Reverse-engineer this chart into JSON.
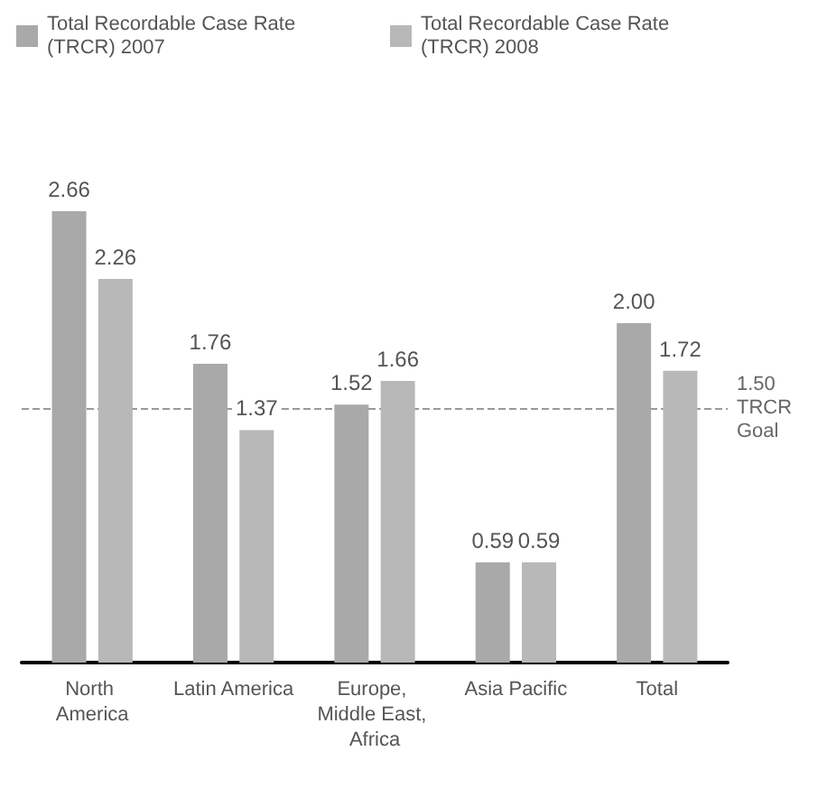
{
  "chart_data": {
    "type": "bar",
    "categories": [
      "North America",
      "Latin America",
      "Europe, Middle East, Africa",
      "Asia Pacific",
      "Total"
    ],
    "series": [
      {
        "name": "Total Recordable Case Rate (TRCR) 2007",
        "color": "#a9a9a9",
        "values": [
          2.66,
          1.76,
          1.52,
          0.59,
          2.0
        ],
        "value_labels": [
          "2.66",
          "1.76",
          "1.52",
          "0.59",
          "2.00"
        ]
      },
      {
        "name": "Total Recordable Case Rate (TRCR) 2008",
        "color": "#b8b8b8",
        "values": [
          2.26,
          1.37,
          1.66,
          0.59,
          1.72
        ],
        "value_labels": [
          "2.26",
          "1.37",
          "1.66",
          "0.59",
          "1.72"
        ]
      }
    ],
    "ref_lines": [
      {
        "axis": "y",
        "value": 1.5,
        "label": "1.50 TRCR Goal",
        "color": "#999999",
        "line_style": "dashed"
      }
    ],
    "legend": "top left",
    "grid": false
  }
}
